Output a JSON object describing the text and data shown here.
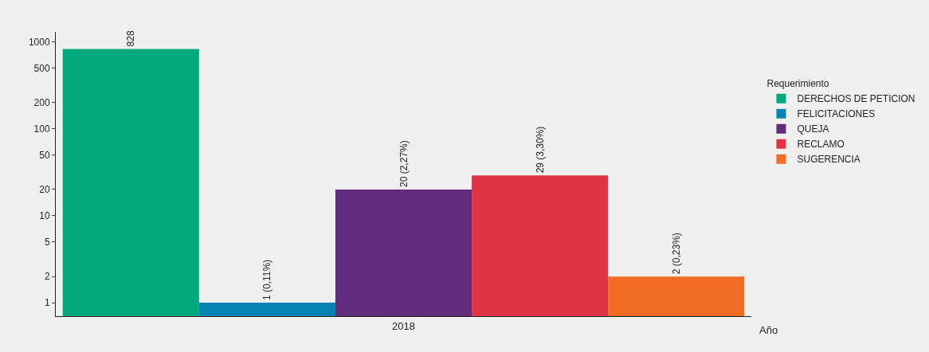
{
  "chart_data": {
    "type": "bar",
    "xlabel": "Año",
    "legend_title": "Requerimiento",
    "categories": [
      "2018"
    ],
    "series": [
      {
        "name": "DERECHOS DE PETICION",
        "color": "#02a97c",
        "values": [
          828
        ],
        "value_labels": [
          "828"
        ]
      },
      {
        "name": "FELICITACIONES",
        "color": "#0783b3",
        "values": [
          1
        ],
        "value_labels": [
          "1 (0,11%)"
        ]
      },
      {
        "name": "QUEJA",
        "color": "#622c7d",
        "values": [
          20
        ],
        "value_labels": [
          "20 (2,27%)"
        ]
      },
      {
        "name": "RECLAMO",
        "color": "#de3446",
        "values": [
          29
        ],
        "value_labels": [
          "29 (3,30%)"
        ]
      },
      {
        "name": "SUGERENCIA",
        "color": "#f06d25",
        "values": [
          2
        ],
        "value_labels": [
          "2 (0,23%)"
        ]
      }
    ],
    "log": "y",
    "ylim": [
      0.7,
      1300
    ],
    "yticks": [
      1,
      2,
      5,
      10,
      20,
      50,
      100,
      200,
      500,
      1000
    ],
    "grid": false,
    "legend": "right"
  }
}
